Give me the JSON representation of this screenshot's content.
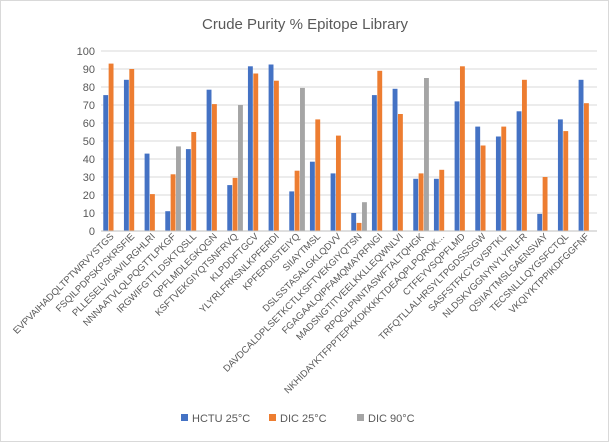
{
  "chart_data": {
    "type": "bar",
    "title": "Crude Purity % Epitope Library",
    "xlabel": "",
    "ylabel": "",
    "ylim": [
      0,
      100
    ],
    "ytick_step": 10,
    "grid": "horizontal",
    "legend_position": "bottom",
    "categories": [
      "EVPVAIHADQLTPTWRVYSTGS",
      "FSQILPDPSKPSKRSFIE",
      "PLLESELVIGAVILRGHLRI",
      "NNNAATVLQLPQGTTLPKGF",
      "IRGWIFGTTLDSKTQSLL",
      "QPFLMDLEGKQGN",
      "KSFTVEKGIYQTSNFRVQ",
      "KLPDDFTGCV",
      "YLYRLFRKSNLKPFERDI",
      "KPFERDISTEIYQ",
      "SIIAYTMSL",
      "DSLSSTASALGKLQDVV",
      "DAVDCALDPLSETKCTLKSFTVEKGIYQTSN",
      "FGAGAALQIPFAMQMAYRFNGI",
      "MADSNGTITVEELKKLLEQWNLVI",
      "RPQGLPNNTASWFTALTQHGK",
      "NKHIDAYKTFPPTEPKKDKKKKTDEAQPLPQRQK...",
      "CTFEYVSQPFLMD",
      "TRFQTLLALHRSYLTPGDSSSGW",
      "SASFSTFKCYGVSPTKL",
      "NLDSKVGGNYNYLYRLFR",
      "QSIIAYTMSLGAENSVAY",
      "TECSNLLLQYGSFCTQL",
      "VKQIYKTPPIKDFGGFNF"
    ],
    "series": [
      {
        "name": "HCTU 25°C",
        "color": "#4472c4",
        "values": [
          75.5,
          84,
          43,
          11,
          45.5,
          78.5,
          25.5,
          91.5,
          92.5,
          22,
          38.5,
          32,
          10,
          75.5,
          79,
          29,
          29,
          72,
          58,
          52.5,
          66.5,
          9.5,
          62,
          84
        ]
      },
      {
        "name": "DIC 25°C",
        "color": "#ed7d31",
        "values": [
          93,
          90,
          20.5,
          31.5,
          55,
          70.5,
          29.5,
          87.5,
          83.5,
          33.5,
          62,
          53,
          4.5,
          89,
          65,
          32,
          34,
          91.5,
          47.5,
          58,
          84,
          30,
          55.5,
          71
        ]
      },
      {
        "name": "DIC 90°C",
        "color": "#a5a5a5",
        "values": [
          null,
          null,
          null,
          47,
          null,
          null,
          70,
          null,
          null,
          79.5,
          null,
          null,
          16,
          null,
          null,
          85,
          null,
          null,
          null,
          null,
          null,
          null,
          null,
          null
        ]
      }
    ]
  }
}
